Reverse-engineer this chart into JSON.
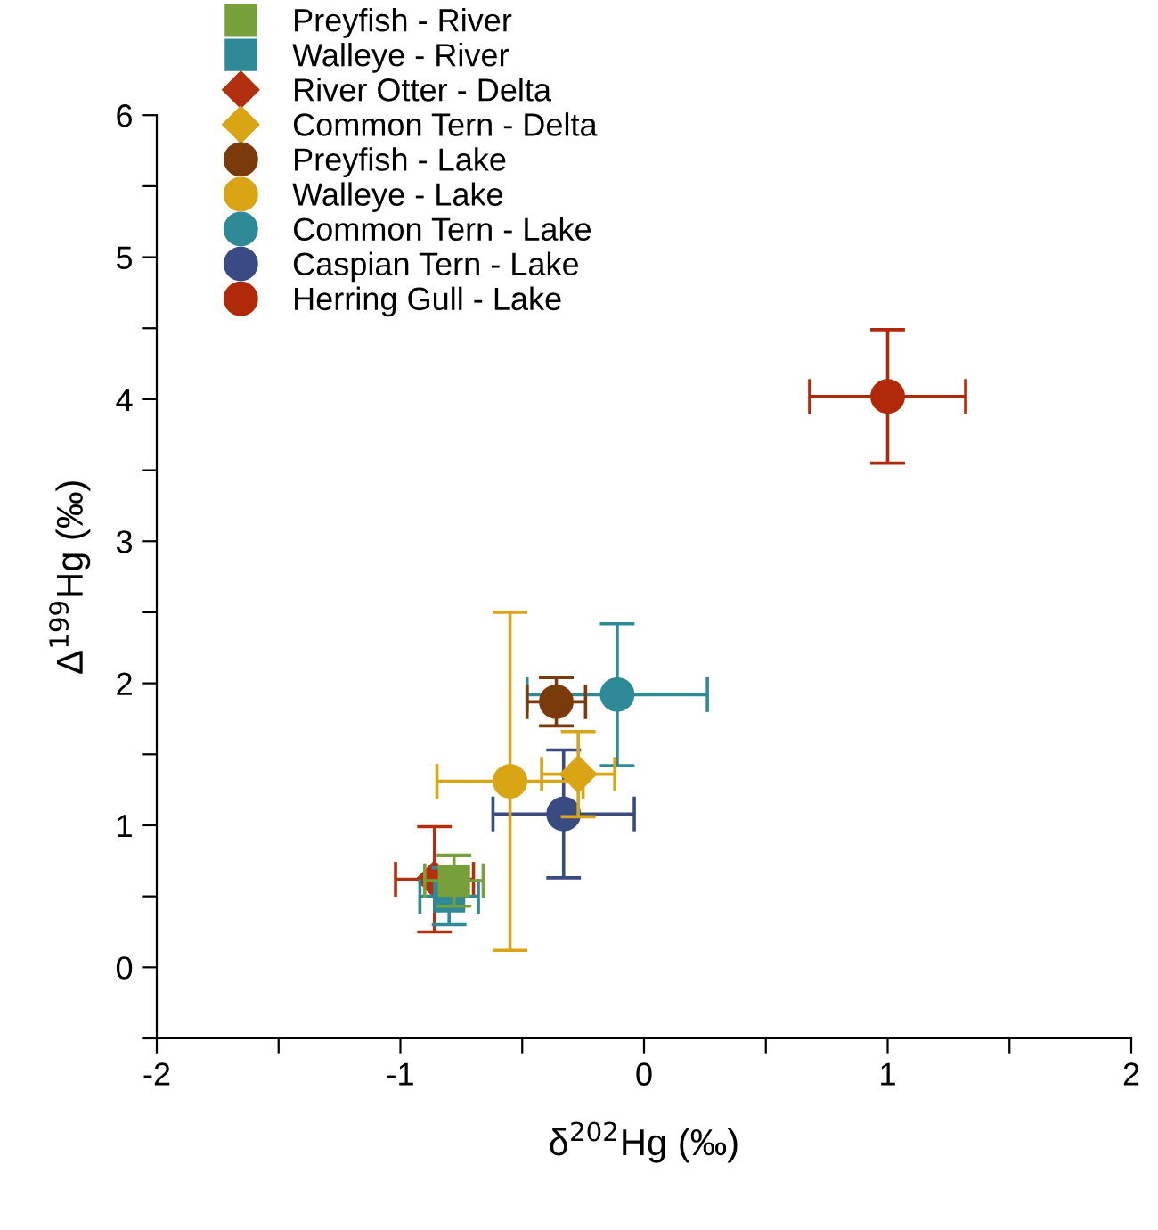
{
  "chart_data": {
    "type": "scatter",
    "xlabel": "δ$^{202}$Hg (‰)",
    "ylabel": "Δ$^{199}$Hg (‰)",
    "xlim": [
      -2,
      2
    ],
    "ylim": [
      -0.5,
      6
    ],
    "xticks": [
      -2,
      {
        "value": -1.5,
        "label": null
      },
      -1,
      {
        "value": -0.5,
        "label": null
      },
      0,
      {
        "value": 0.5,
        "label": null
      },
      1,
      {
        "value": 1.5,
        "label": null
      },
      2
    ],
    "yticks": [
      {
        "value": -0.5,
        "label": null
      },
      0,
      {
        "value": 0.5,
        "label": null
      },
      1,
      {
        "value": 1.5,
        "label": null
      },
      2,
      {
        "value": 2.5,
        "label": null
      },
      3,
      {
        "value": 3.5,
        "label": null
      },
      4,
      {
        "value": 4.5,
        "label": null
      },
      5,
      {
        "value": 5.5,
        "label": null
      },
      6
    ],
    "grid": false,
    "legend": "top left",
    "series": [
      {
        "name": "Preyfish - River",
        "color": "#77a03a",
        "marker": "square",
        "x": [
          -0.78
        ],
        "values": [
          0.61
        ],
        "errors": [
          0.18
        ],
        "xerrors": [
          0.12
        ]
      },
      {
        "name": "Walleye - River",
        "color": "#2e8a96",
        "marker": "square",
        "x": [
          -0.8
        ],
        "values": [
          0.5
        ],
        "errors": [
          0.2
        ],
        "xerrors": [
          0.12
        ]
      },
      {
        "name": "River Otter - Delta",
        "color": "#b2300f",
        "marker": "diamond",
        "x": [
          -0.86
        ],
        "values": [
          0.62
        ],
        "errors": [
          0.37
        ],
        "xerrors": [
          0.16
        ]
      },
      {
        "name": "Common Tern - Delta",
        "color": "#d9a514",
        "marker": "diamond",
        "x": [
          -0.27
        ],
        "values": [
          1.36
        ],
        "errors": [
          0.3
        ],
        "xerrors": [
          0.15
        ]
      },
      {
        "name": "Preyfish - Lake",
        "color": "#7a3a0a",
        "marker": "circle",
        "x": [
          -0.36
        ],
        "values": [
          1.87
        ],
        "errors": [
          0.17
        ],
        "xerrors": [
          0.12
        ]
      },
      {
        "name": "Walleye - Lake",
        "color": "#d9a514",
        "marker": "circle",
        "x": [
          -0.55
        ],
        "values": [
          1.31
        ],
        "errors": [
          1.19
        ],
        "xerrors": [
          0.3
        ]
      },
      {
        "name": "Common Tern - Lake",
        "color": "#2d8a96",
        "marker": "circle",
        "x": [
          -0.11
        ],
        "values": [
          1.92
        ],
        "errors": [
          0.5
        ],
        "xerrors": [
          0.37
        ]
      },
      {
        "name": "Caspian Tern - Lake",
        "color": "#3a4a82",
        "marker": "circle",
        "x": [
          -0.33
        ],
        "values": [
          1.08
        ],
        "errors": [
          0.45
        ],
        "xerrors": [
          0.29
        ]
      },
      {
        "name": "Herring Gull - Lake",
        "color": "#b02a0a",
        "marker": "circle",
        "x": [
          1.0
        ],
        "values": [
          4.02
        ],
        "errors": [
          0.47
        ],
        "xerrors": [
          0.32
        ]
      }
    ]
  }
}
